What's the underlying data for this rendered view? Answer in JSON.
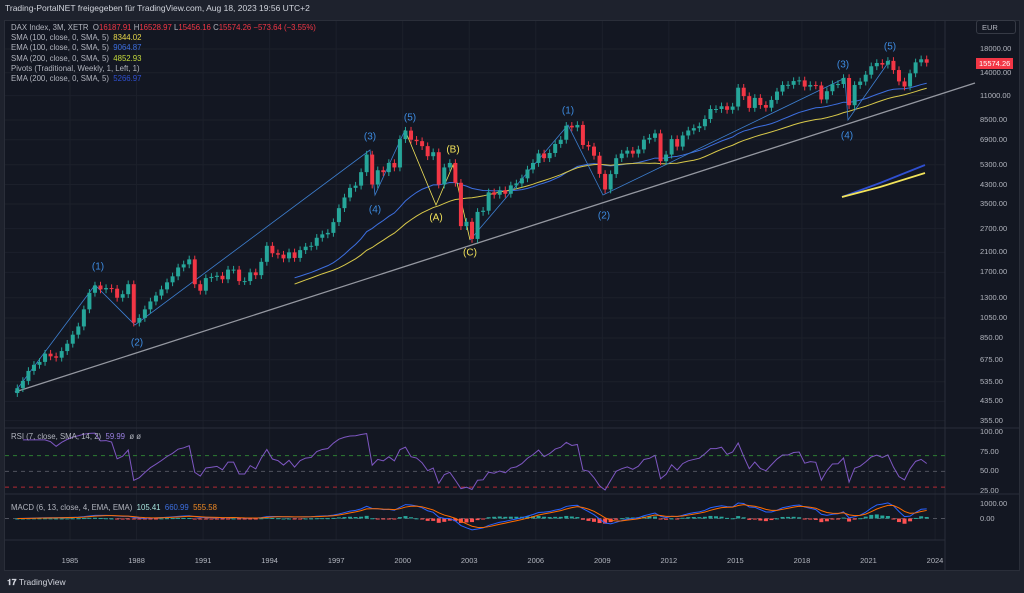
{
  "header": {
    "title": "Trading-PortalNET freigegeben für TradingView.com, Aug 18, 2023 19:56 UTC+2"
  },
  "legend": {
    "symbol": "DAX Index, 3M, XETR",
    "o_label": "O",
    "o": "16187.91",
    "h_label": "H",
    "h": "16528.97",
    "l_label": "L",
    "l": "15456.16",
    "c_label": "C",
    "c": "15574.26",
    "change": "−573.64 (−3.55%)",
    "indicators": [
      {
        "name": "SMA (100, close, 0, SMA, 5)",
        "value": "8344.02"
      },
      {
        "name": "EMA (100, close, 0, SMA, 5)",
        "value": "9064.87"
      },
      {
        "name": "SMA (200, close, 0, SMA, 5)",
        "value": "4852.93"
      },
      {
        "name": "Pivots (Traditional, Weekly, 1, Left, 1)",
        "value": ""
      },
      {
        "name": "EMA (200, close, 0, SMA, 5)",
        "value": "5266.97"
      }
    ]
  },
  "rsi": {
    "name": "RSI (7, close, SMA, 14, 2)",
    "value": "59.99",
    "extra": "ø ø"
  },
  "macd": {
    "name": "MACD (6, 13, close, 4, EMA, EMA)",
    "hist": "105.41",
    "macd": "660.99",
    "signal": "555.58"
  },
  "currency": "EUR",
  "last_price": "15574.26",
  "footer": {
    "brand": "TradingView"
  },
  "colors": {
    "up": "#26a69a",
    "down": "#f23645",
    "ema": "#3d6fe0",
    "sma": "#d8c84a",
    "trend": "#9598a1",
    "rsi": "#7e57c2"
  },
  "chart_data": {
    "type": "candlestick",
    "title": "DAX Index, 3M, XETR",
    "scale": "log",
    "price_ticks": [
      "18000.00",
      "14000.00",
      "11000.00",
      "8500.00",
      "6900.00",
      "5300.00",
      "4300.00",
      "3500.00",
      "2700.00",
      "2100.00",
      "1700.00",
      "1300.00",
      "1050.00",
      "850.00",
      "675.00",
      "535.00",
      "435.00",
      "355.00"
    ],
    "rsi_ticks": [
      "100.00",
      "75.00",
      "50.00",
      "25.00"
    ],
    "macd_ticks": [
      "1000.00",
      "0.00"
    ],
    "x_ticks": [
      "1985",
      "1988",
      "1991",
      "1994",
      "1997",
      "2000",
      "2003",
      "2006",
      "2009",
      "2012",
      "2015",
      "2018",
      "2021",
      "2024"
    ],
    "start": "1982 Q3",
    "interval": "quarter",
    "closes": [
      500,
      540,
      600,
      640,
      660,
      720,
      700,
      690,
      740,
      800,
      880,
      960,
      1150,
      1370,
      1480,
      1420,
      1440,
      1430,
      1300,
      1350,
      1500,
      1000,
      1050,
      1150,
      1250,
      1330,
      1420,
      1530,
      1630,
      1790,
      1850,
      1950,
      1500,
      1400,
      1600,
      1620,
      1640,
      1580,
      1750,
      1750,
      1550,
      1550,
      1700,
      1650,
      1900,
      2250,
      2080,
      2050,
      1970,
      2100,
      1980,
      2150,
      2230,
      2250,
      2450,
      2540,
      2580,
      2890,
      3350,
      3750,
      4150,
      4250,
      4900,
      5900,
      4300,
      5000,
      4900,
      5400,
      5150,
      6950,
      7600,
      6900,
      6800,
      6450,
      5800,
      6050,
      4300,
      5150,
      5400,
      4380,
      2770,
      2900,
      2420,
      3220,
      3260,
      3960,
      3860,
      4050,
      3900,
      4260,
      4350,
      4590,
      5040,
      5400,
      5970,
      5680,
      6000,
      6600,
      6900,
      8000,
      7860,
      8070,
      6530,
      6420,
      5830,
      4810,
      4080,
      4800,
      5680,
      5960,
      6150,
      5960,
      6230,
      6910,
      7040,
      7380,
      5500,
      5900,
      6950,
      6420,
      7220,
      7610,
      7800,
      7960,
      8590,
      9550,
      9550,
      9830,
      9470,
      9800,
      11960,
      10940,
      9660,
      10740,
      9960,
      9680,
      10510,
      11480,
      12310,
      12330,
      12830,
      12920,
      12100,
      12300,
      12250,
      10560,
      11520,
      12400,
      12430,
      13250,
      9940,
      12310,
      12760,
      13720,
      15000,
      15530,
      15260,
      15880,
      14410,
      12780,
      12110,
      13920,
      15630,
      16150,
      15574
    ],
    "wave_labels": [
      "(1)",
      "(2)",
      "(3)",
      "(4)",
      "(5)",
      "(A)",
      "(B)",
      "(C)",
      "(1)",
      "(2)",
      "(3)",
      "(4)",
      "(5)"
    ]
  }
}
